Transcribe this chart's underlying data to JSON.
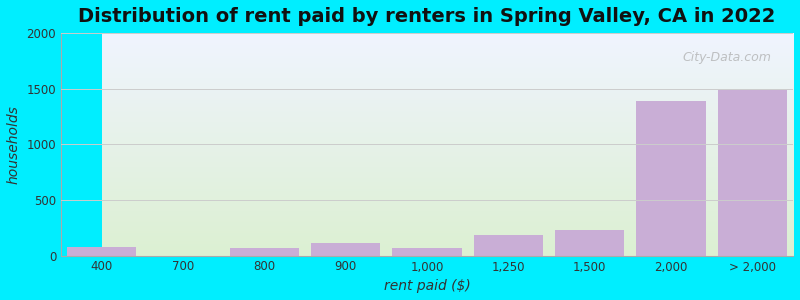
{
  "title": "Distribution of rent paid by renters in Spring Valley, CA in 2022",
  "xlabel": "rent paid ($)",
  "ylabel": "households",
  "categories": [
    "400",
    "700",
    "800",
    "900",
    "1,000",
    "1,250",
    "1,500",
    "2,000",
    "> 2,000"
  ],
  "values": [
    80,
    0,
    70,
    110,
    70,
    185,
    230,
    1390,
    1490
  ],
  "bar_color": "#c9aed6",
  "background_color": "#00eeff",
  "plot_bg_top": "#f0f4ff",
  "plot_bg_bottom": "#e8f5e0",
  "ylim": [
    0,
    2000
  ],
  "yticks": [
    0,
    500,
    1000,
    1500,
    2000
  ],
  "title_fontsize": 14,
  "axis_label_fontsize": 10,
  "tick_fontsize": 8.5,
  "watermark_text": "City-Data.com"
}
